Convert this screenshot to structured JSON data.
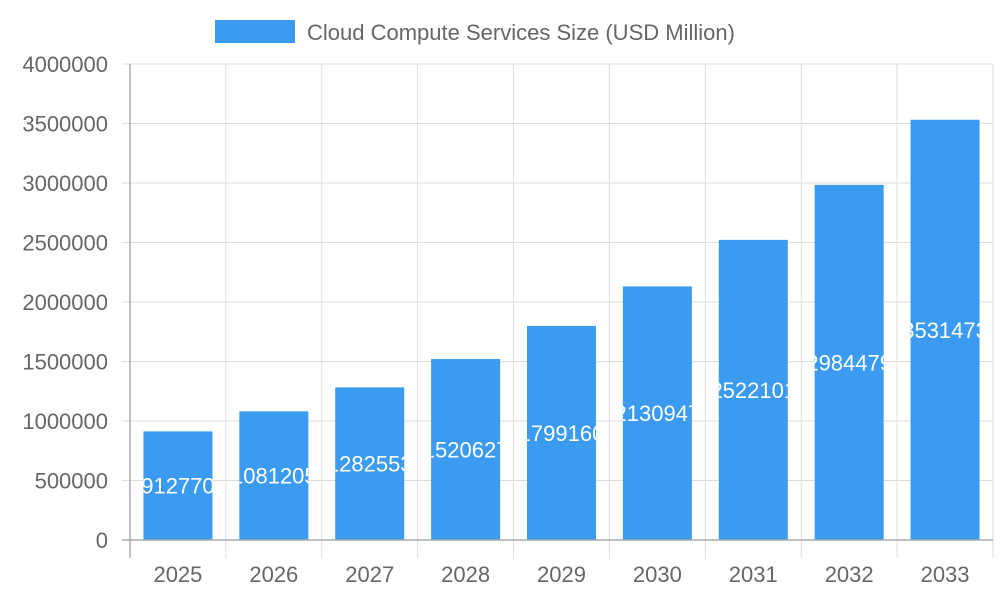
{
  "chart_data": {
    "type": "bar",
    "title": "",
    "xlabel": "",
    "ylabel": "",
    "categories": [
      "2025",
      "2026",
      "2027",
      "2028",
      "2029",
      "2030",
      "2031",
      "2032",
      "2033"
    ],
    "series": [
      {
        "name": "Cloud Compute Services Size (USD Million)",
        "values": [
          912770,
          1081205,
          1282553,
          1520627,
          1799160,
          2130947,
          2522101,
          2984479,
          3531473
        ],
        "color": "#3a9bf0"
      }
    ],
    "ylim": [
      0,
      4000000
    ],
    "yticks": [
      "0",
      "500000",
      "1000000",
      "1500000",
      "2000000",
      "2500000",
      "3000000",
      "3500000",
      "4000000"
    ],
    "grid": true,
    "legend_position": "top",
    "data_labels": true
  }
}
